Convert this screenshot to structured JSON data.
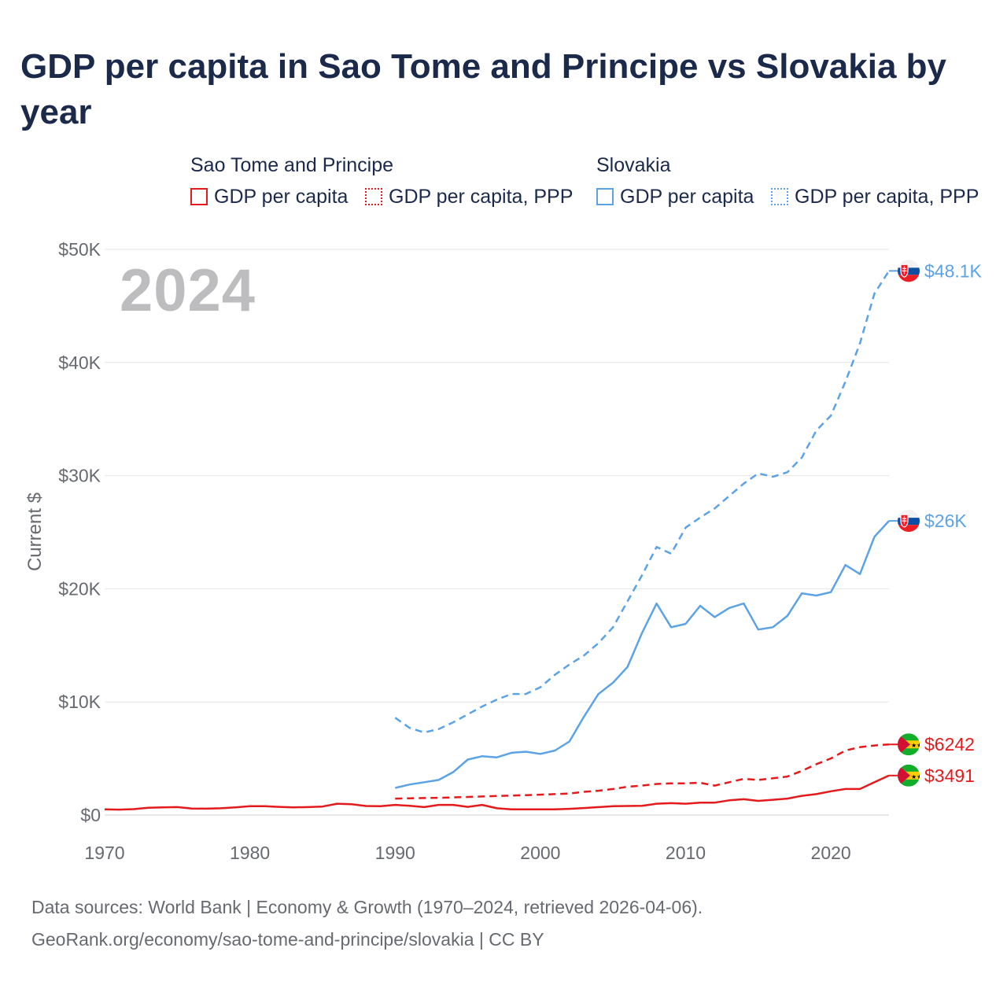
{
  "title": "GDP per capita in Sao Tome and Principe vs Slovakia by year",
  "year_label": "2024",
  "legend": {
    "groups": [
      {
        "name": "Sao Tome and Principe",
        "color": "#e41a1c",
        "items": [
          {
            "label": "GDP per capita",
            "style": "solid"
          },
          {
            "label": "GDP per capita, PPP",
            "style": "dotted"
          }
        ]
      },
      {
        "name": "Slovakia",
        "color": "#5ba3e6",
        "items": [
          {
            "label": "GDP per capita",
            "style": "solid"
          },
          {
            "label": "GDP per capita, PPP",
            "style": "dotted"
          }
        ]
      }
    ]
  },
  "footer": {
    "line1": "Data sources: World Bank | Economy & Growth (1970–2024, retrieved 2026-04-06).",
    "line2": "GeoRank.org/economy/sao-tome-and-principe/slovakia | CC BY"
  },
  "chart_data": {
    "type": "line",
    "ylabel": "Current $",
    "xlim": [
      1970,
      2024
    ],
    "ylim": [
      0,
      50000
    ],
    "x_ticks": [
      1970,
      1980,
      1990,
      2000,
      2010,
      2020
    ],
    "y_ticks": [
      {
        "value": 0,
        "label": "$0"
      },
      {
        "value": 10000,
        "label": "$10K"
      },
      {
        "value": 20000,
        "label": "$20K"
      },
      {
        "value": 30000,
        "label": "$30K"
      },
      {
        "value": 40000,
        "label": "$40K"
      },
      {
        "value": 50000,
        "label": "$50K"
      }
    ],
    "series": [
      {
        "name": "Sao Tome and Principe GDP per capita",
        "country": "Sao Tome and Principe",
        "color": "#e41a1c",
        "dash": "solid",
        "flag": "sao-tome-flag-icon",
        "end_label": "$3491",
        "x": [
          1970,
          1971,
          1972,
          1973,
          1974,
          1975,
          1976,
          1977,
          1978,
          1979,
          1980,
          1981,
          1982,
          1983,
          1984,
          1985,
          1986,
          1987,
          1988,
          1989,
          1990,
          1991,
          1992,
          1993,
          1994,
          1995,
          1996,
          1997,
          1998,
          1999,
          2000,
          2001,
          2002,
          2003,
          2004,
          2005,
          2006,
          2007,
          2008,
          2009,
          2010,
          2011,
          2012,
          2013,
          2014,
          2015,
          2016,
          2017,
          2018,
          2019,
          2020,
          2021,
          2022,
          2023,
          2024
        ],
        "values": [
          500,
          480,
          520,
          650,
          680,
          700,
          580,
          560,
          600,
          680,
          780,
          780,
          720,
          680,
          700,
          750,
          1000,
          950,
          800,
          780,
          900,
          820,
          700,
          900,
          900,
          720,
          900,
          600,
          500,
          500,
          500,
          500,
          550,
          620,
          700,
          780,
          800,
          820,
          1000,
          1050,
          1000,
          1100,
          1100,
          1300,
          1400,
          1250,
          1350,
          1450,
          1700,
          1850,
          2100,
          2300,
          2300,
          2900,
          3491
        ]
      },
      {
        "name": "Sao Tome and Principe GDP per capita, PPP",
        "country": "Sao Tome and Principe",
        "color": "#e41a1c",
        "dash": "dotted",
        "flag": "sao-tome-flag-icon",
        "end_label": "$6242",
        "x": [
          1990,
          1991,
          1992,
          1993,
          1994,
          1995,
          1996,
          1997,
          1998,
          1999,
          2000,
          2001,
          2002,
          2003,
          2004,
          2005,
          2006,
          2007,
          2008,
          2009,
          2010,
          2011,
          2012,
          2013,
          2014,
          2015,
          2016,
          2017,
          2018,
          2019,
          2020,
          2021,
          2022,
          2023,
          2024
        ],
        "values": [
          1450,
          1480,
          1500,
          1520,
          1560,
          1600,
          1640,
          1680,
          1720,
          1760,
          1800,
          1850,
          1900,
          2050,
          2150,
          2300,
          2500,
          2600,
          2750,
          2800,
          2800,
          2850,
          2600,
          2900,
          3200,
          3100,
          3250,
          3400,
          3900,
          4500,
          5000,
          5700,
          6000,
          6150,
          6242
        ]
      },
      {
        "name": "Slovakia GDP per capita",
        "country": "Slovakia",
        "color": "#5ba3e6",
        "dash": "solid",
        "flag": "slovakia-flag-icon",
        "end_label": "$26K",
        "x": [
          1990,
          1991,
          1992,
          1993,
          1994,
          1995,
          1996,
          1997,
          1998,
          1999,
          2000,
          2001,
          2002,
          2003,
          2004,
          2005,
          2006,
          2007,
          2008,
          2009,
          2010,
          2011,
          2012,
          2013,
          2014,
          2015,
          2016,
          2017,
          2018,
          2019,
          2020,
          2021,
          2022,
          2023,
          2024
        ],
        "values": [
          2400,
          2700,
          2900,
          3100,
          3800,
          4900,
          5200,
          5100,
          5500,
          5600,
          5400,
          5700,
          6500,
          8700,
          10700,
          11700,
          13100,
          16100,
          18700,
          16600,
          16900,
          18500,
          17500,
          18300,
          18700,
          16400,
          16600,
          17600,
          19600,
          19400,
          19700,
          22100,
          21300,
          24600,
          26000
        ]
      },
      {
        "name": "Slovakia GDP per capita, PPP",
        "country": "Slovakia",
        "color": "#5ba3e6",
        "dash": "dotted",
        "flag": "slovakia-flag-icon",
        "end_label": "$48.1K",
        "x": [
          1990,
          1991,
          1992,
          1993,
          1994,
          1995,
          1996,
          1997,
          1998,
          1999,
          2000,
          2001,
          2002,
          2003,
          2004,
          2005,
          2006,
          2007,
          2008,
          2009,
          2010,
          2011,
          2012,
          2013,
          2014,
          2015,
          2016,
          2017,
          2018,
          2019,
          2020,
          2021,
          2022,
          2023,
          2024
        ],
        "values": [
          8600,
          7700,
          7300,
          7600,
          8200,
          8900,
          9600,
          10200,
          10700,
          10700,
          11300,
          12400,
          13300,
          14100,
          15200,
          16600,
          18900,
          21200,
          23700,
          23100,
          25400,
          26300,
          27100,
          28200,
          29300,
          30200,
          29900,
          30300,
          31600,
          34000,
          35300,
          38300,
          41700,
          46100,
          48100
        ]
      }
    ]
  }
}
